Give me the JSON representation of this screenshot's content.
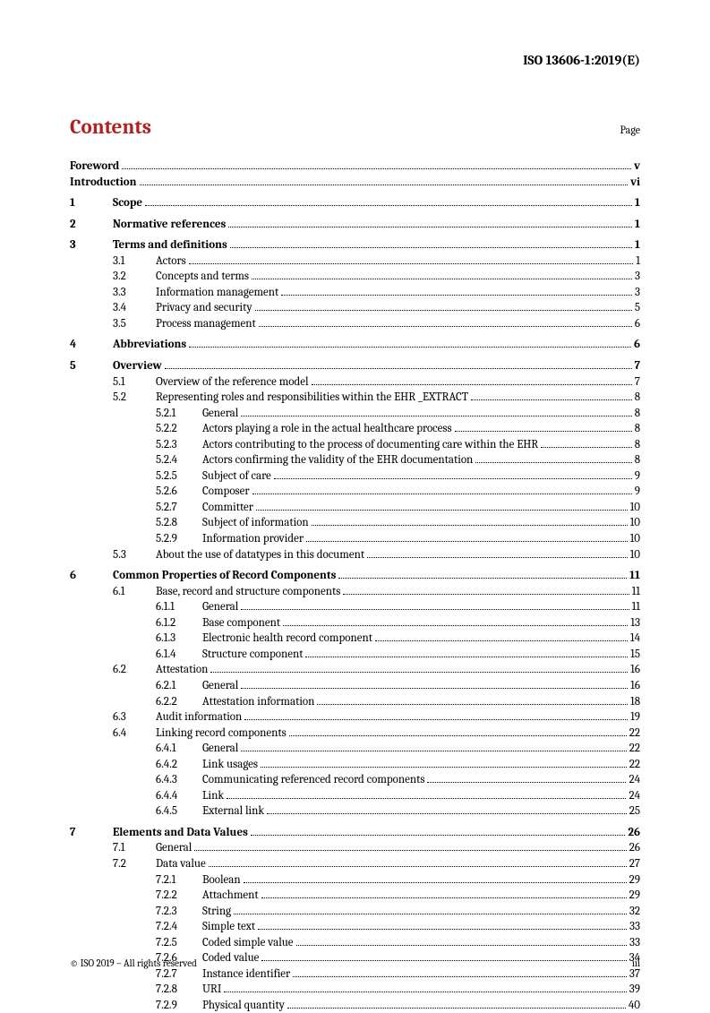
{
  "doc_id": "ISO 13606-1:2019(E)",
  "contents_title": "Contents",
  "page_label": "Page",
  "footer_left": "© ISO 2019 – All rights reserved",
  "footer_right": "iii",
  "style": {
    "accent_color": "#b02020",
    "text_color": "#000000",
    "background_color": "#ffffff",
    "leader_style": "dotted",
    "base_fontsize": 13,
    "title_fontsize": 23,
    "docid_fontsize": 15,
    "footer_fontsize": 11
  },
  "toc": [
    {
      "level": 0,
      "num": "",
      "label": "Foreword",
      "page": "v",
      "bold": true
    },
    {
      "level": 0,
      "num": "",
      "label": "Introduction",
      "page": "vi",
      "bold": true
    },
    {
      "gap": true
    },
    {
      "level": 1,
      "num": "1",
      "label": "Scope",
      "page": "1",
      "bold": true
    },
    {
      "gap": true
    },
    {
      "level": 1,
      "num": "2",
      "label": "Normative references",
      "page": "1",
      "bold": true
    },
    {
      "gap": true
    },
    {
      "level": 1,
      "num": "3",
      "label": "Terms and definitions",
      "page": "1",
      "bold": true
    },
    {
      "level": 2,
      "num": "3.1",
      "label": "Actors",
      "page": "1"
    },
    {
      "level": 2,
      "num": "3.2",
      "label": "Concepts and terms",
      "page": "3"
    },
    {
      "level": 2,
      "num": "3.3",
      "label": "Information management",
      "page": "3"
    },
    {
      "level": 2,
      "num": "3.4",
      "label": "Privacy and security",
      "page": "5"
    },
    {
      "level": 2,
      "num": "3.5",
      "label": "Process management",
      "page": "6"
    },
    {
      "gap": true
    },
    {
      "level": 1,
      "num": "4",
      "label": "Abbreviations",
      "page": "6",
      "bold": true
    },
    {
      "gap": true
    },
    {
      "level": 1,
      "num": "5",
      "label": "Overview",
      "page": "7",
      "bold": true
    },
    {
      "level": 2,
      "num": "5.1",
      "label": "Overview of the reference model",
      "page": "7"
    },
    {
      "level": 2,
      "num": "5.2",
      "label": "Representing roles and responsibilities within the EHR _EXTRACT",
      "page": "8"
    },
    {
      "level": 3,
      "num": "5.2.1",
      "label": "General",
      "page": "8"
    },
    {
      "level": 3,
      "num": "5.2.2",
      "label": "Actors playing a role in the actual healthcare process",
      "page": "8"
    },
    {
      "level": 3,
      "num": "5.2.3",
      "label": "Actors contributing to the process of documenting care within the EHR",
      "page": "8"
    },
    {
      "level": 3,
      "num": "5.2.4",
      "label": "Actors confirming the validity of the EHR documentation",
      "page": "8"
    },
    {
      "level": 3,
      "num": "5.2.5",
      "label": "Subject of care",
      "page": "9"
    },
    {
      "level": 3,
      "num": "5.2.6",
      "label": "Composer",
      "page": "9"
    },
    {
      "level": 3,
      "num": "5.2.7",
      "label": "Committer",
      "page": "10"
    },
    {
      "level": 3,
      "num": "5.2.8",
      "label": "Subject of information",
      "page": "10"
    },
    {
      "level": 3,
      "num": "5.2.9",
      "label": "Information provider",
      "page": "10"
    },
    {
      "level": 2,
      "num": "5.3",
      "label": "About the use of datatypes in this document",
      "page": "10"
    },
    {
      "gap": true
    },
    {
      "level": 1,
      "num": "6",
      "label": "Common Properties of Record Components",
      "page": "11",
      "bold": true
    },
    {
      "level": 2,
      "num": "6.1",
      "label": "Base, record and structure components",
      "page": "11"
    },
    {
      "level": 3,
      "num": "6.1.1",
      "label": "General",
      "page": "11"
    },
    {
      "level": 3,
      "num": "6.1.2",
      "label": "Base component",
      "page": "13"
    },
    {
      "level": 3,
      "num": "6.1.3",
      "label": "Electronic health record component",
      "page": "14"
    },
    {
      "level": 3,
      "num": "6.1.4",
      "label": "Structure component",
      "page": "15"
    },
    {
      "level": 2,
      "num": "6.2",
      "label": "Attestation",
      "page": "16"
    },
    {
      "level": 3,
      "num": "6.2.1",
      "label": "General",
      "page": "16"
    },
    {
      "level": 3,
      "num": "6.2.2",
      "label": "Attestation information",
      "page": "18"
    },
    {
      "level": 2,
      "num": "6.3",
      "label": "Audit information",
      "page": "19"
    },
    {
      "level": 2,
      "num": "6.4",
      "label": "Linking record components",
      "page": "22"
    },
    {
      "level": 3,
      "num": "6.4.1",
      "label": "General",
      "page": "22"
    },
    {
      "level": 3,
      "num": "6.4.2",
      "label": "Link usages",
      "page": "22"
    },
    {
      "level": 3,
      "num": "6.4.3",
      "label": "Communicating referenced record components",
      "page": "24"
    },
    {
      "level": 3,
      "num": "6.4.4",
      "label": "Link",
      "page": "24"
    },
    {
      "level": 3,
      "num": "6.4.5",
      "label": "External link",
      "page": "25"
    },
    {
      "gap": true
    },
    {
      "level": 1,
      "num": "7",
      "label": "Elements and Data Values",
      "page": "26",
      "bold": true
    },
    {
      "level": 2,
      "num": "7.1",
      "label": "General",
      "page": "26"
    },
    {
      "level": 2,
      "num": "7.2",
      "label": "Data value",
      "page": "27"
    },
    {
      "level": 3,
      "num": "7.2.1",
      "label": "Boolean",
      "page": "29"
    },
    {
      "level": 3,
      "num": "7.2.2",
      "label": "Attachment",
      "page": "29"
    },
    {
      "level": 3,
      "num": "7.2.3",
      "label": "String",
      "page": "32"
    },
    {
      "level": 3,
      "num": "7.2.4",
      "label": "Simple text",
      "page": "33"
    },
    {
      "level": 3,
      "num": "7.2.5",
      "label": "Coded simple value",
      "page": "33"
    },
    {
      "level": 3,
      "num": "7.2.6",
      "label": "Coded value",
      "page": "34"
    },
    {
      "level": 3,
      "num": "7.2.7",
      "label": "Instance identifier",
      "page": "37"
    },
    {
      "level": 3,
      "num": "7.2.8",
      "label": "URI",
      "page": "39"
    },
    {
      "level": 3,
      "num": "7.2.9",
      "label": "Physical quantity",
      "page": "40"
    }
  ]
}
